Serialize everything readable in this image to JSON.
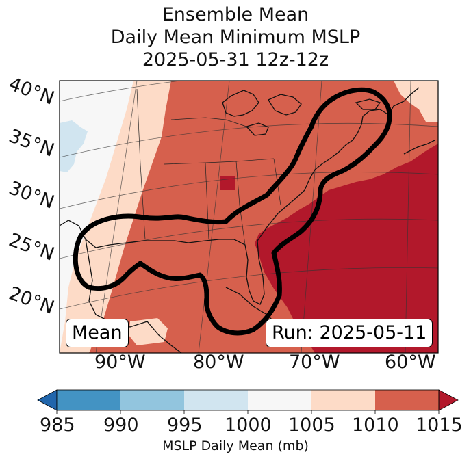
{
  "title": {
    "line1": "Ensemble Mean",
    "line2": "Daily Mean Minimum MSLP",
    "line3": "2025-05-31 12z-12z"
  },
  "map": {
    "lat_labels": [
      "40°N",
      "35°N",
      "30°N",
      "25°N",
      "20°N"
    ],
    "lon_labels": [
      "90°W",
      "80°W",
      "70°W",
      "60°W"
    ],
    "mean_label": "Mean",
    "run_label": "Run: 2025-05-11"
  },
  "colorbar": {
    "ticks": [
      "985",
      "990",
      "995",
      "1000",
      "1005",
      "1010",
      "1015"
    ],
    "colors": [
      "#4393c3",
      "#92c5de",
      "#d1e5f0",
      "#f7f7f7",
      "#fddbc7",
      "#d6604d"
    ],
    "under_color": "#2166ac",
    "over_color": "#b2182b",
    "caption": "MSLP Daily Mean (mb)"
  }
}
